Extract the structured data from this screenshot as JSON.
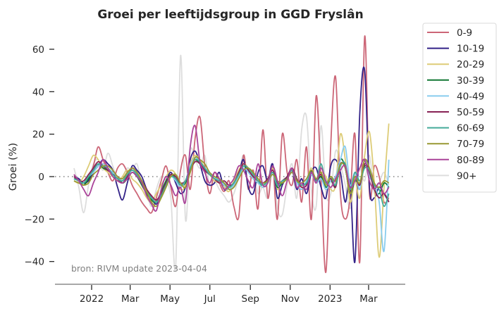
{
  "chart_data": {
    "type": "line",
    "title": "Groei per leeftijdsgroup in GGD Fryslân",
    "xlabel": "",
    "ylabel": "Groei (%)",
    "ylim": [
      -50,
      70
    ],
    "yticks": [
      60,
      40,
      20,
      0,
      -20,
      -40
    ],
    "ytick_labels": [
      "60",
      "40",
      "20",
      "0",
      "−20",
      "−40"
    ],
    "xlim": [
      "2021-11-10",
      "2023-04-20"
    ],
    "xticks": [
      "2022-01-01",
      "2022-03-01",
      "2022-05-01",
      "2022-07-01",
      "2022-09-01",
      "2022-11-01",
      "2023-01-01",
      "2023-03-01"
    ],
    "xtick_labels": [
      "2022",
      "Mar",
      "May",
      "Jul",
      "Sep",
      "Nov",
      "2023",
      "Mar"
    ],
    "reference_line": {
      "y": 0,
      "style": "dotted",
      "color": "#808080"
    },
    "grid": false,
    "legend": {
      "placement": "outside-right-top"
    },
    "annotation": "bron: RIVM update 2023-04-04",
    "x_start": "2021-12-05",
    "x_step_days": 7,
    "series": [
      {
        "name": "0-9",
        "color": "#cc6677",
        "values": [
          1,
          -2,
          -4,
          -1,
          5,
          14,
          8,
          2,
          -2,
          4,
          6,
          2,
          -4,
          -8,
          -12,
          -15,
          -17,
          -10,
          -2,
          5,
          -5,
          -14,
          3,
          10,
          -6,
          18,
          28,
          5,
          -8,
          2,
          -3,
          -7,
          -2,
          -14,
          -19,
          10,
          -6,
          3,
          -15,
          22,
          -10,
          5,
          -20,
          20,
          2,
          -4,
          8,
          -12,
          14,
          -20,
          38,
          -2,
          -45,
          15,
          47,
          -8,
          -20,
          -10,
          20,
          -40,
          66,
          -8,
          5,
          0,
          -12,
          -10
        ]
      },
      {
        "name": "10-19",
        "color": "#332288",
        "values": [
          0,
          -1,
          -3,
          -2,
          2,
          5,
          8,
          6,
          3,
          -5,
          -11,
          -3,
          5,
          3,
          0,
          -6,
          -10,
          -13,
          -8,
          -2,
          2,
          -3,
          -8,
          -5,
          8,
          12,
          6,
          -2,
          -4,
          -3,
          2,
          -6,
          -5,
          -3,
          1,
          8,
          -5,
          -8,
          2,
          5,
          -2,
          6,
          -10,
          -4,
          0,
          3,
          -6,
          -1,
          -8,
          2,
          4,
          -5,
          -10,
          5,
          8,
          2,
          -12,
          -2,
          -40,
          30,
          50,
          -5,
          -10,
          -5,
          -8,
          -12
        ]
      },
      {
        "name": "20-29",
        "color": "#ddcc77",
        "values": [
          -2,
          -3,
          0,
          5,
          10,
          8,
          4,
          2,
          0,
          -2,
          0,
          3,
          -1,
          -3,
          -6,
          -10,
          -12,
          -8,
          -4,
          0,
          3,
          1,
          -6,
          -4,
          6,
          10,
          8,
          4,
          1,
          -2,
          -3,
          -5,
          -7,
          -2,
          3,
          6,
          4,
          0,
          -3,
          -5,
          -2,
          4,
          -6,
          -2,
          0,
          3,
          -1,
          -5,
          -2,
          4,
          -3,
          2,
          0,
          -6,
          -4,
          20,
          8,
          -12,
          -2,
          -10,
          10,
          21,
          -3,
          -38,
          -5,
          25
        ]
      },
      {
        "name": "30-39",
        "color": "#117733",
        "values": [
          -1,
          -2,
          -4,
          -1,
          3,
          6,
          4,
          3,
          2,
          0,
          -3,
          -1,
          2,
          0,
          -4,
          -8,
          -11,
          -12,
          -7,
          -2,
          1,
          -1,
          -4,
          -3,
          4,
          8,
          6,
          3,
          1,
          -1,
          -2,
          -4,
          -5,
          -3,
          1,
          5,
          3,
          -1,
          -3,
          -4,
          -2,
          2,
          -5,
          -3,
          -1,
          2,
          -2,
          -4,
          -3,
          3,
          -2,
          0,
          -5,
          -2,
          -4,
          8,
          4,
          -8,
          -2,
          -3,
          5,
          2,
          -6,
          -8,
          -3,
          -5
        ]
      },
      {
        "name": "40-49",
        "color": "#88ccee",
        "values": [
          -1,
          -2,
          -3,
          0,
          2,
          5,
          6,
          4,
          2,
          0,
          -2,
          0,
          3,
          1,
          -3,
          -7,
          -10,
          -12,
          -9,
          -4,
          0,
          -2,
          -5,
          -2,
          5,
          9,
          7,
          4,
          2,
          0,
          -2,
          -4,
          -6,
          -4,
          0,
          4,
          2,
          -1,
          -3,
          -5,
          -3,
          1,
          -4,
          -2,
          0,
          2,
          -3,
          -6,
          -2,
          1,
          -3,
          -1,
          -6,
          -2,
          0,
          8,
          14,
          -4,
          2,
          -6,
          8,
          0,
          -4,
          -12,
          -35,
          8
        ]
      },
      {
        "name": "50-59",
        "color": "#882255",
        "values": [
          0,
          -2,
          -2,
          1,
          4,
          7,
          5,
          3,
          1,
          -1,
          -3,
          0,
          4,
          2,
          -2,
          -6,
          -9,
          -11,
          -8,
          -3,
          1,
          0,
          -3,
          -2,
          3,
          7,
          6,
          3,
          1,
          -1,
          -3,
          -2,
          -4,
          -3,
          2,
          6,
          3,
          0,
          -2,
          -3,
          -1,
          3,
          -3,
          -2,
          0,
          4,
          -1,
          -5,
          -4,
          2,
          -1,
          1,
          -3,
          -1,
          -5,
          6,
          4,
          -8,
          0,
          -4,
          6,
          2,
          -6,
          -10,
          -8,
          -12
        ]
      },
      {
        "name": "60-69",
        "color": "#44aa99",
        "values": [
          -1,
          -2,
          -3,
          0,
          3,
          6,
          5,
          4,
          1,
          -1,
          -2,
          1,
          3,
          1,
          -3,
          -7,
          -10,
          -12,
          -9,
          -4,
          0,
          -1,
          -4,
          -2,
          4,
          8,
          7,
          4,
          1,
          -1,
          -2,
          -3,
          -5,
          -3,
          1,
          5,
          4,
          1,
          -2,
          -4,
          -2,
          2,
          -4,
          -2,
          -1,
          3,
          -2,
          -4,
          -3,
          2,
          -2,
          6,
          -3,
          0,
          -4,
          5,
          6,
          -6,
          2,
          -2,
          4,
          3,
          -4,
          -6,
          -14,
          -8
        ]
      },
      {
        "name": "70-79",
        "color": "#999933",
        "values": [
          -2,
          -3,
          -4,
          -3,
          1,
          3,
          5,
          5,
          3,
          0,
          -1,
          2,
          4,
          2,
          -2,
          -7,
          -12,
          -14,
          -10,
          -5,
          0,
          1,
          -3,
          -5,
          2,
          9,
          8,
          6,
          2,
          0,
          -1,
          -3,
          -6,
          -5,
          -1,
          3,
          4,
          2,
          -1,
          -3,
          -2,
          1,
          -2,
          -3,
          -1,
          2,
          -2,
          -3,
          -1,
          3,
          -1,
          2,
          -4,
          0,
          -2,
          6,
          4,
          -8,
          0,
          -3,
          8,
          4,
          -3,
          -5,
          -2,
          -3
        ]
      },
      {
        "name": "80-89",
        "color": "#aa4499",
        "values": [
          1,
          -2,
          -6,
          -9,
          -3,
          2,
          8,
          4,
          0,
          -2,
          -3,
          -1,
          2,
          0,
          -3,
          -9,
          -13,
          -16,
          -6,
          0,
          -4,
          -9,
          -5,
          -12,
          14,
          24,
          7,
          2,
          -3,
          2,
          -1,
          -6,
          -4,
          -1,
          5,
          3,
          -2,
          -5,
          6,
          -4,
          -3,
          5,
          -2,
          -9,
          -2,
          4,
          -5,
          -3,
          -6,
          2,
          -3,
          4,
          -2,
          -5,
          -1,
          3,
          5,
          -5,
          -2,
          4,
          8,
          -2,
          -6,
          -3,
          -8,
          -5
        ]
      },
      {
        "name": "90+",
        "color": "#dddddd",
        "values": [
          4,
          -5,
          -17,
          -4,
          6,
          8,
          3,
          11,
          5,
          -2,
          0,
          4,
          3,
          6,
          -4,
          -8,
          -14,
          -6,
          0,
          -2,
          -10,
          -42,
          57,
          -20,
          12,
          8,
          4,
          10,
          -4,
          -2,
          -6,
          -9,
          -12,
          -8,
          0,
          10,
          -6,
          2,
          -8,
          -5,
          -10,
          5,
          -15,
          -18,
          -4,
          6,
          -10,
          22,
          28,
          -6,
          -14,
          24,
          -8,
          -8,
          12,
          6,
          -4,
          -15,
          0,
          4,
          -2,
          10,
          -8,
          -3,
          2,
          -4
        ]
      }
    ]
  }
}
